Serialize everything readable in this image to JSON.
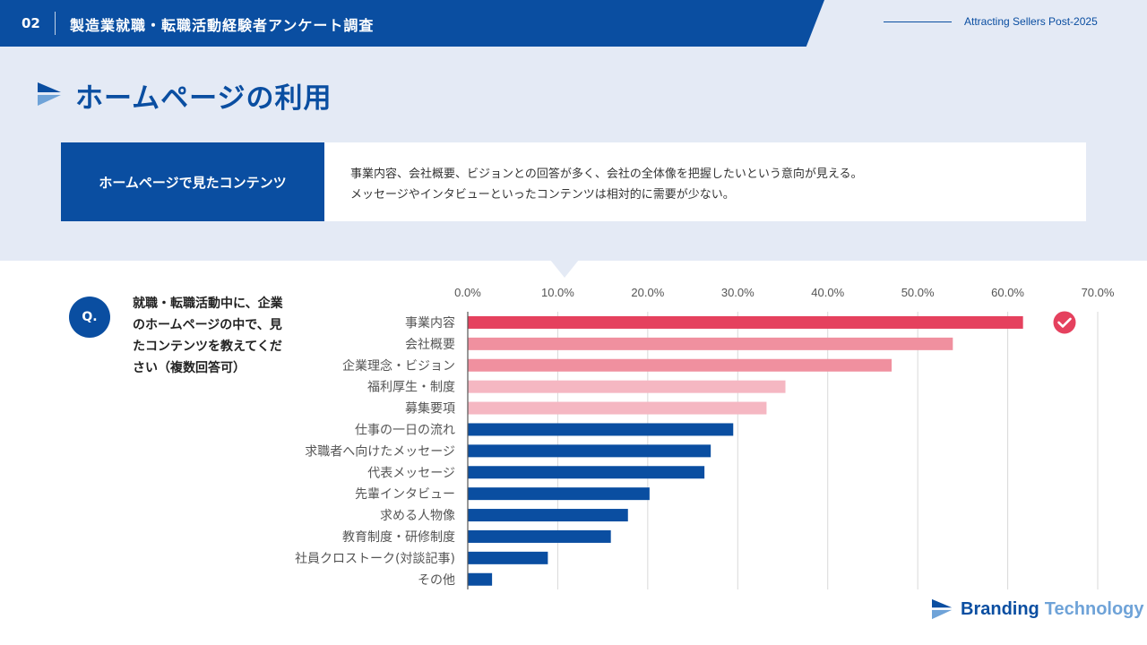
{
  "header": {
    "page_number": "02",
    "survey_title": "製造業就職・転職活動経験者アンケート調査",
    "tagline": "Attracting Sellers Post-2025"
  },
  "page_title": "ホームページの利用",
  "summary": {
    "label": "ホームページで見たコンテンツ",
    "line1": "事業内容、会社概要、ビジョンとの回答が多く、会社の全体像を把握したいという意向が見える。",
    "line2": "メッセージやインタビューといったコンテンツは相対的に需要が少ない。"
  },
  "question": {
    "badge": "Q.",
    "text": "就職・転職活動中に、企業のホームページの中で、見たコンテンツを教えてください（複数回答可）"
  },
  "colors": {
    "brand_blue": "#0a4ea1",
    "top_red": "#e5415e",
    "pink_mid": "#f0909f",
    "pink_light": "#f5b7c2",
    "grid": "#d9d9d9"
  },
  "chart_data": {
    "type": "bar",
    "orientation": "horizontal",
    "categories": [
      "事業内容",
      "会社概要",
      "企業理念・ビジョン",
      "福利厚生・制度",
      "募集要項",
      "仕事の一日の流れ",
      "求職者へ向けたメッセージ",
      "代表メッセージ",
      "先輩インタビュー",
      "求める人物像",
      "教育制度・研修制度",
      "社員クロストーク(対談記事)",
      "その他"
    ],
    "values": [
      61.7,
      53.9,
      47.1,
      35.3,
      33.2,
      29.5,
      27.0,
      26.3,
      20.2,
      17.8,
      15.9,
      8.9,
      2.7
    ],
    "highlight": [
      "top",
      "pink",
      "pink",
      "light",
      "light",
      "blue",
      "blue",
      "blue",
      "blue",
      "blue",
      "blue",
      "blue",
      "blue"
    ],
    "xlim": [
      0,
      70
    ],
    "ticks": [
      "0.0%",
      "10.0%",
      "20.0%",
      "30.0%",
      "40.0%",
      "50.0%",
      "60.0%",
      "70.0%"
    ],
    "tick_values": [
      0,
      10,
      20,
      30,
      40,
      50,
      60,
      70
    ],
    "axis_position": "top",
    "grid": true,
    "marker": "check-icon"
  },
  "footer": {
    "brand_word1": "Branding",
    "brand_word2": "Technology"
  }
}
